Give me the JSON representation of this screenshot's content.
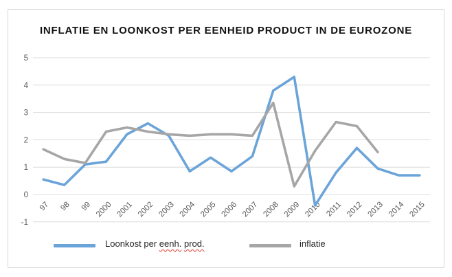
{
  "colors": {
    "series_loonkost": "#6ba4d9",
    "series_inflatie": "#a6a6a6",
    "gridline": "#dcdcdc",
    "axis_text": "#595959",
    "title_text": "#121212",
    "frame_border": "#d6d6d6",
    "spellcheck_underline": "#e03c31"
  },
  "legend": {
    "series1_prefix": "Loonkost per",
    "series1_word1": "eenh.",
    "series1_word2": "prod.",
    "series2_label": "inflatie"
  },
  "chart_data": {
    "type": "line",
    "title": "INFLATIE EN LOONKOST PER EENHEID PRODUCT IN DE EUROZONE",
    "categories": [
      "97",
      "98",
      "99",
      "2000",
      "2001",
      "2002",
      "2003",
      "2004",
      "2005",
      "2006",
      "2007",
      "2008",
      "2009",
      "2010",
      "2011",
      "2012",
      "2013",
      "2014",
      "2015"
    ],
    "series": [
      {
        "name": "Loonkost per eenh. prod.",
        "color": "#6ba4d9",
        "values": [
          0.55,
          0.35,
          1.1,
          1.2,
          2.2,
          2.6,
          2.15,
          0.85,
          1.35,
          0.85,
          1.4,
          3.8,
          4.3,
          -0.4,
          0.8,
          1.7,
          0.95,
          0.7,
          0.7
        ]
      },
      {
        "name": "inflatie",
        "color": "#a6a6a6",
        "values": [
          1.65,
          1.3,
          1.15,
          2.3,
          2.45,
          2.3,
          2.2,
          2.15,
          2.2,
          2.2,
          2.15,
          3.35,
          0.3,
          1.6,
          2.65,
          2.5,
          1.55,
          null,
          null
        ]
      }
    ],
    "xlabel": "",
    "ylabel": "",
    "ylim": [
      -1,
      5
    ],
    "ytick_step": 1,
    "grid": true,
    "grid_direction": "horizontal",
    "legend_position": "bottom",
    "x_label_rotation_deg": 45
  }
}
